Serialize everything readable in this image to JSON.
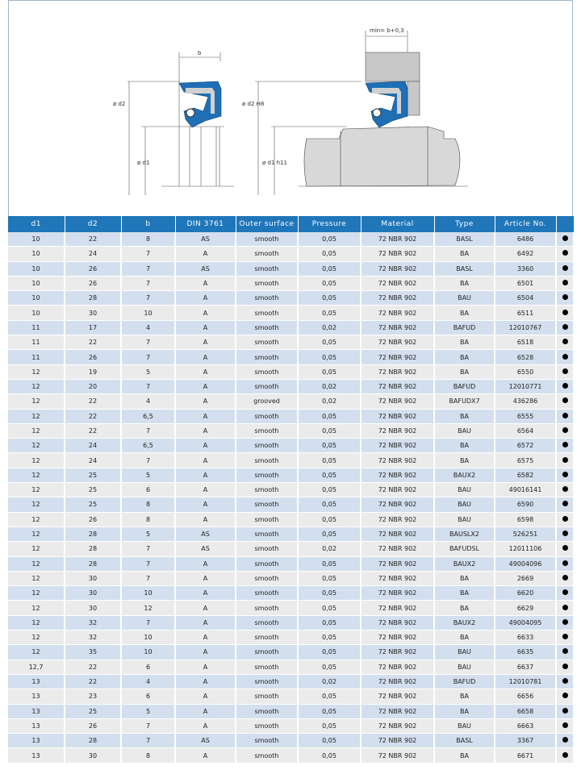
{
  "drawing": {
    "b_label": "b",
    "min_label": "min= b+0,3",
    "d2_label": "ø d2",
    "d2h8_label": "ø d2 H8",
    "d1_label": "ø d1",
    "d1h11_label": "ø d1 h11",
    "accent": "#1f6fb5"
  },
  "table": {
    "headers": [
      "d1",
      "d2",
      "b",
      "DIN 3761",
      "Outer surface",
      "Pressure",
      "Material",
      "Type",
      "Article No.",
      ""
    ],
    "rows": [
      [
        "10",
        "22",
        "8",
        "AS",
        "smooth",
        "0,05",
        "72 NBR 902",
        "BASL",
        "6486"
      ],
      [
        "10",
        "24",
        "7",
        "A",
        "smooth",
        "0,05",
        "72 NBR 902",
        "BA",
        "6492"
      ],
      [
        "10",
        "26",
        "7",
        "AS",
        "smooth",
        "0,05",
        "72 NBR 902",
        "BASL",
        "3360"
      ],
      [
        "10",
        "26",
        "7",
        "A",
        "smooth",
        "0,05",
        "72 NBR 902",
        "BA",
        "6501"
      ],
      [
        "10",
        "28",
        "7",
        "A",
        "smooth",
        "0,05",
        "72 NBR 902",
        "BAU",
        "6504"
      ],
      [
        "10",
        "30",
        "10",
        "A",
        "smooth",
        "0,05",
        "72 NBR 902",
        "BA",
        "6511"
      ],
      [
        "11",
        "17",
        "4",
        "A",
        "smooth",
        "0,02",
        "72 NBR 902",
        "BAFUD",
        "12010767"
      ],
      [
        "11",
        "22",
        "7",
        "A",
        "smooth",
        "0,05",
        "72 NBR 902",
        "BA",
        "6518"
      ],
      [
        "11",
        "26",
        "7",
        "A",
        "smooth",
        "0,05",
        "72 NBR 902",
        "BA",
        "6528"
      ],
      [
        "12",
        "19",
        "5",
        "A",
        "smooth",
        "0,05",
        "72 NBR 902",
        "BA",
        "6550"
      ],
      [
        "12",
        "20",
        "7",
        "A",
        "smooth",
        "0,02",
        "72 NBR 902",
        "BAFUD",
        "12010771"
      ],
      [
        "12",
        "22",
        "4",
        "A",
        "grooved",
        "0,02",
        "72 NBR 902",
        "BAFUDX7",
        "436286"
      ],
      [
        "12",
        "22",
        "6,5",
        "A",
        "smooth",
        "0,05",
        "72 NBR 902",
        "BA",
        "6555"
      ],
      [
        "12",
        "22",
        "7",
        "A",
        "smooth",
        "0,05",
        "72 NBR 902",
        "BAU",
        "6564"
      ],
      [
        "12",
        "24",
        "6,5",
        "A",
        "smooth",
        "0,05",
        "72 NBR 902",
        "BA",
        "6572"
      ],
      [
        "12",
        "24",
        "7",
        "A",
        "smooth",
        "0,05",
        "72 NBR 902",
        "BA",
        "6575"
      ],
      [
        "12",
        "25",
        "5",
        "A",
        "smooth",
        "0,05",
        "72 NBR 902",
        "BAUX2",
        "6582"
      ],
      [
        "12",
        "25",
        "6",
        "A",
        "smooth",
        "0,05",
        "72 NBR 902",
        "BAU",
        "49016141"
      ],
      [
        "12",
        "25",
        "8",
        "A",
        "smooth",
        "0,05",
        "72 NBR 902",
        "BAU",
        "6590"
      ],
      [
        "12",
        "26",
        "8",
        "A",
        "smooth",
        "0,05",
        "72 NBR 902",
        "BAU",
        "6598"
      ],
      [
        "12",
        "28",
        "5",
        "AS",
        "smooth",
        "0,05",
        "72 NBR 902",
        "BAUSLX2",
        "526251"
      ],
      [
        "12",
        "28",
        "7",
        "AS",
        "smooth",
        "0,02",
        "72 NBR 902",
        "BAFUDSL",
        "12011106"
      ],
      [
        "12",
        "28",
        "7",
        "A",
        "smooth",
        "0,05",
        "72 NBR 902",
        "BAUX2",
        "49004096"
      ],
      [
        "12",
        "30",
        "7",
        "A",
        "smooth",
        "0,05",
        "72 NBR 902",
        "BA",
        "2669"
      ],
      [
        "12",
        "30",
        "10",
        "A",
        "smooth",
        "0,05",
        "72 NBR 902",
        "BA",
        "6620"
      ],
      [
        "12",
        "30",
        "12",
        "A",
        "smooth",
        "0,05",
        "72 NBR 902",
        "BA",
        "6629"
      ],
      [
        "12",
        "32",
        "7",
        "A",
        "smooth",
        "0,05",
        "72 NBR 902",
        "BAUX2",
        "49004095"
      ],
      [
        "12",
        "32",
        "10",
        "A",
        "smooth",
        "0,05",
        "72 NBR 902",
        "BA",
        "6633"
      ],
      [
        "12",
        "35",
        "10",
        "A",
        "smooth",
        "0,05",
        "72 NBR 902",
        "BAU",
        "6635"
      ],
      [
        "12,7",
        "22",
        "6",
        "A",
        "smooth",
        "0,05",
        "72 NBR 902",
        "BAU",
        "6637"
      ],
      [
        "13",
        "22",
        "4",
        "A",
        "smooth",
        "0,02",
        "72 NBR 902",
        "BAFUD",
        "12010781"
      ],
      [
        "13",
        "23",
        "6",
        "A",
        "smooth",
        "0,05",
        "72 NBR 902",
        "BA",
        "6656"
      ],
      [
        "13",
        "25",
        "5",
        "A",
        "smooth",
        "0,05",
        "72 NBR 902",
        "BA",
        "6658"
      ],
      [
        "13",
        "26",
        "7",
        "A",
        "smooth",
        "0,05",
        "72 NBR 902",
        "BAU",
        "6663"
      ],
      [
        "13",
        "28",
        "7",
        "AS",
        "smooth",
        "0,05",
        "72 NBR 902",
        "BASL",
        "3367"
      ],
      [
        "13",
        "30",
        "8",
        "A",
        "smooth",
        "0,05",
        "72 NBR 902",
        "BA",
        "6671"
      ]
    ]
  }
}
